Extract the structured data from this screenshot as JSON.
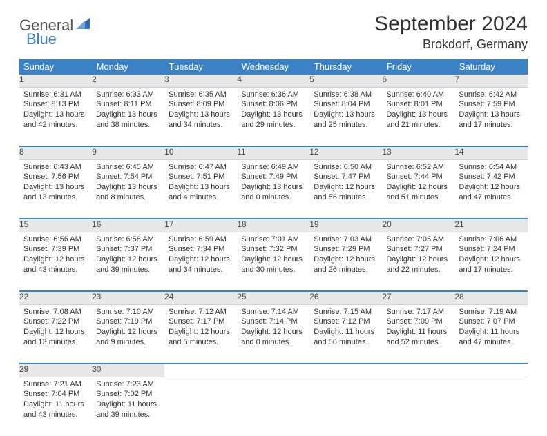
{
  "brand": {
    "part1": "General",
    "part2": "Blue"
  },
  "title": "September 2024",
  "location": "Brokdorf, Germany",
  "colors": {
    "header_bg": "#3b82c4",
    "daynum_bg": "#e8e8e8",
    "text": "#333333",
    "page_bg": "#ffffff"
  },
  "weekdays": [
    "Sunday",
    "Monday",
    "Tuesday",
    "Wednesday",
    "Thursday",
    "Friday",
    "Saturday"
  ],
  "days": {
    "1": {
      "sunrise": "Sunrise: 6:31 AM",
      "sunset": "Sunset: 8:13 PM",
      "daylight": "Daylight: 13 hours and 42 minutes."
    },
    "2": {
      "sunrise": "Sunrise: 6:33 AM",
      "sunset": "Sunset: 8:11 PM",
      "daylight": "Daylight: 13 hours and 38 minutes."
    },
    "3": {
      "sunrise": "Sunrise: 6:35 AM",
      "sunset": "Sunset: 8:09 PM",
      "daylight": "Daylight: 13 hours and 34 minutes."
    },
    "4": {
      "sunrise": "Sunrise: 6:36 AM",
      "sunset": "Sunset: 8:06 PM",
      "daylight": "Daylight: 13 hours and 29 minutes."
    },
    "5": {
      "sunrise": "Sunrise: 6:38 AM",
      "sunset": "Sunset: 8:04 PM",
      "daylight": "Daylight: 13 hours and 25 minutes."
    },
    "6": {
      "sunrise": "Sunrise: 6:40 AM",
      "sunset": "Sunset: 8:01 PM",
      "daylight": "Daylight: 13 hours and 21 minutes."
    },
    "7": {
      "sunrise": "Sunrise: 6:42 AM",
      "sunset": "Sunset: 7:59 PM",
      "daylight": "Daylight: 13 hours and 17 minutes."
    },
    "8": {
      "sunrise": "Sunrise: 6:43 AM",
      "sunset": "Sunset: 7:56 PM",
      "daylight": "Daylight: 13 hours and 13 minutes."
    },
    "9": {
      "sunrise": "Sunrise: 6:45 AM",
      "sunset": "Sunset: 7:54 PM",
      "daylight": "Daylight: 13 hours and 8 minutes."
    },
    "10": {
      "sunrise": "Sunrise: 6:47 AM",
      "sunset": "Sunset: 7:51 PM",
      "daylight": "Daylight: 13 hours and 4 minutes."
    },
    "11": {
      "sunrise": "Sunrise: 6:49 AM",
      "sunset": "Sunset: 7:49 PM",
      "daylight": "Daylight: 13 hours and 0 minutes."
    },
    "12": {
      "sunrise": "Sunrise: 6:50 AM",
      "sunset": "Sunset: 7:47 PM",
      "daylight": "Daylight: 12 hours and 56 minutes."
    },
    "13": {
      "sunrise": "Sunrise: 6:52 AM",
      "sunset": "Sunset: 7:44 PM",
      "daylight": "Daylight: 12 hours and 51 minutes."
    },
    "14": {
      "sunrise": "Sunrise: 6:54 AM",
      "sunset": "Sunset: 7:42 PM",
      "daylight": "Daylight: 12 hours and 47 minutes."
    },
    "15": {
      "sunrise": "Sunrise: 6:56 AM",
      "sunset": "Sunset: 7:39 PM",
      "daylight": "Daylight: 12 hours and 43 minutes."
    },
    "16": {
      "sunrise": "Sunrise: 6:58 AM",
      "sunset": "Sunset: 7:37 PM",
      "daylight": "Daylight: 12 hours and 39 minutes."
    },
    "17": {
      "sunrise": "Sunrise: 6:59 AM",
      "sunset": "Sunset: 7:34 PM",
      "daylight": "Daylight: 12 hours and 34 minutes."
    },
    "18": {
      "sunrise": "Sunrise: 7:01 AM",
      "sunset": "Sunset: 7:32 PM",
      "daylight": "Daylight: 12 hours and 30 minutes."
    },
    "19": {
      "sunrise": "Sunrise: 7:03 AM",
      "sunset": "Sunset: 7:29 PM",
      "daylight": "Daylight: 12 hours and 26 minutes."
    },
    "20": {
      "sunrise": "Sunrise: 7:05 AM",
      "sunset": "Sunset: 7:27 PM",
      "daylight": "Daylight: 12 hours and 22 minutes."
    },
    "21": {
      "sunrise": "Sunrise: 7:06 AM",
      "sunset": "Sunset: 7:24 PM",
      "daylight": "Daylight: 12 hours and 17 minutes."
    },
    "22": {
      "sunrise": "Sunrise: 7:08 AM",
      "sunset": "Sunset: 7:22 PM",
      "daylight": "Daylight: 12 hours and 13 minutes."
    },
    "23": {
      "sunrise": "Sunrise: 7:10 AM",
      "sunset": "Sunset: 7:19 PM",
      "daylight": "Daylight: 12 hours and 9 minutes."
    },
    "24": {
      "sunrise": "Sunrise: 7:12 AM",
      "sunset": "Sunset: 7:17 PM",
      "daylight": "Daylight: 12 hours and 5 minutes."
    },
    "25": {
      "sunrise": "Sunrise: 7:14 AM",
      "sunset": "Sunset: 7:14 PM",
      "daylight": "Daylight: 12 hours and 0 minutes."
    },
    "26": {
      "sunrise": "Sunrise: 7:15 AM",
      "sunset": "Sunset: 7:12 PM",
      "daylight": "Daylight: 11 hours and 56 minutes."
    },
    "27": {
      "sunrise": "Sunrise: 7:17 AM",
      "sunset": "Sunset: 7:09 PM",
      "daylight": "Daylight: 11 hours and 52 minutes."
    },
    "28": {
      "sunrise": "Sunrise: 7:19 AM",
      "sunset": "Sunset: 7:07 PM",
      "daylight": "Daylight: 11 hours and 47 minutes."
    },
    "29": {
      "sunrise": "Sunrise: 7:21 AM",
      "sunset": "Sunset: 7:04 PM",
      "daylight": "Daylight: 11 hours and 43 minutes."
    },
    "30": {
      "sunrise": "Sunrise: 7:23 AM",
      "sunset": "Sunset: 7:02 PM",
      "daylight": "Daylight: 11 hours and 39 minutes."
    }
  },
  "layout": {
    "weeks": [
      [
        1,
        2,
        3,
        4,
        5,
        6,
        7
      ],
      [
        8,
        9,
        10,
        11,
        12,
        13,
        14
      ],
      [
        15,
        16,
        17,
        18,
        19,
        20,
        21
      ],
      [
        22,
        23,
        24,
        25,
        26,
        27,
        28
      ],
      [
        29,
        30,
        null,
        null,
        null,
        null,
        null
      ]
    ]
  }
}
